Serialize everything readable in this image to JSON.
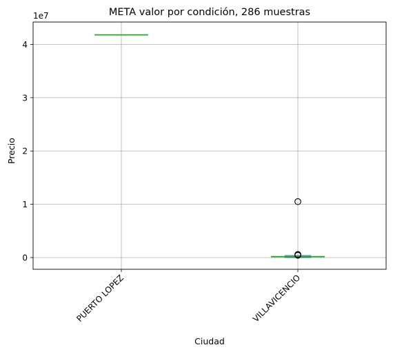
{
  "chart_data": {
    "type": "box",
    "title": "META valor por condición, 286 muestras",
    "xlabel": "Ciudad",
    "ylabel": "Precio",
    "y_offset_text": "1e7",
    "y_scale_factor": 10000000,
    "ylim": [
      -2200000,
      44200000
    ],
    "yticks": [
      0,
      10000000,
      20000000,
      30000000,
      40000000
    ],
    "ytick_labels": [
      "0",
      "1",
      "2",
      "3",
      "4"
    ],
    "grid": true,
    "xtick_rotation": 45,
    "categories": [
      "PUERTO LOPEZ",
      "VILLAVICENCIO"
    ],
    "boxes": [
      {
        "category": "PUERTO LOPEZ",
        "whisker_low": 41800000,
        "q1": 41800000,
        "median": 41800000,
        "q3": 41800000,
        "whisker_high": 41800000,
        "outliers": []
      },
      {
        "category": "VILLAVICENCIO",
        "whisker_low": 20000,
        "q1": 120000,
        "median": 160000,
        "q3": 220000,
        "whisker_high": 380000,
        "outliers": [
          420000,
          470000,
          520000,
          580000,
          10500000
        ]
      }
    ],
    "colors": {
      "box": "#1f77b4",
      "median": "#2ca02c",
      "grid": "#b0b0b0",
      "axes": "#000000"
    }
  }
}
